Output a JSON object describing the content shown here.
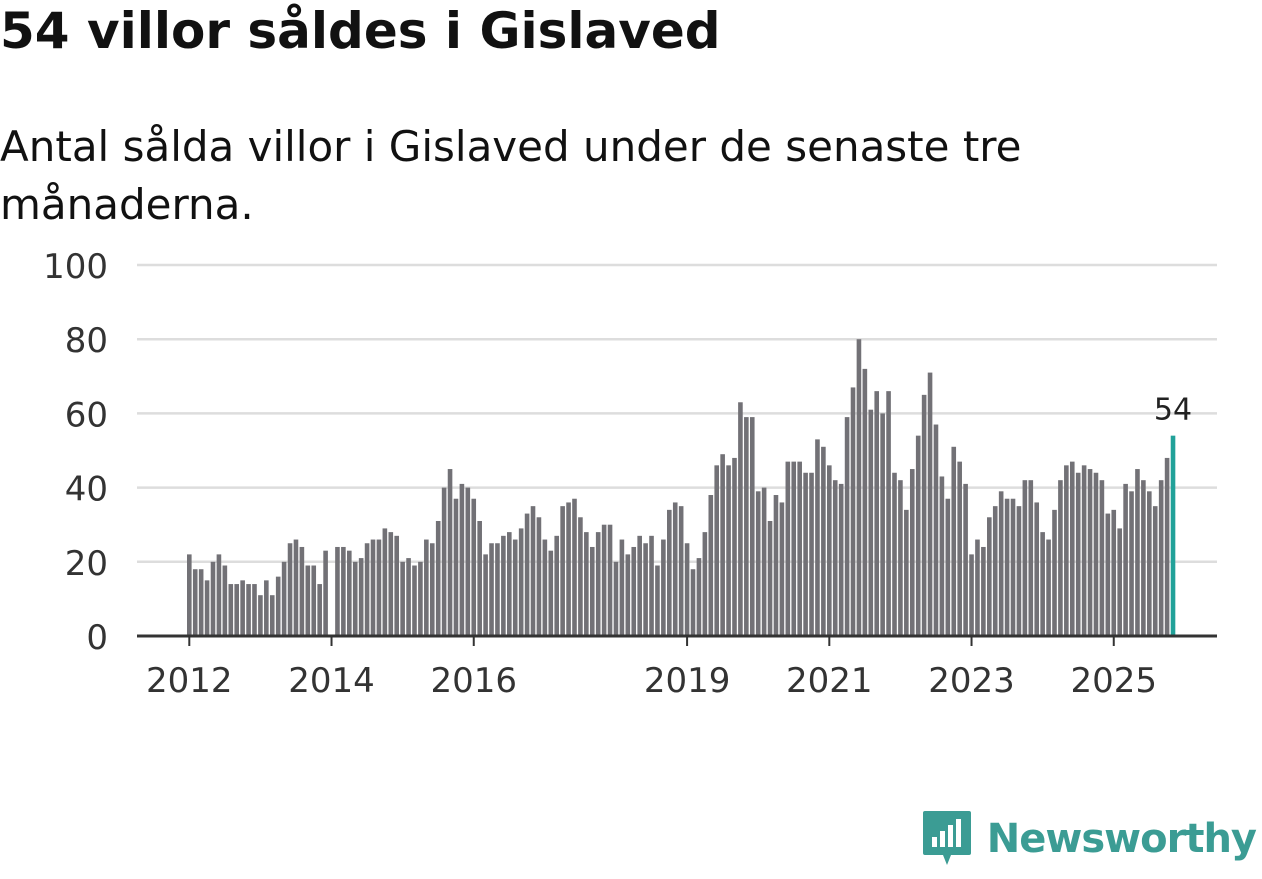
{
  "title": "54 villor såldes i Gislaved",
  "subtitle": "Antal sålda villor i Gislaved under de senaste tre månaderna.",
  "brand": {
    "name": "Newsworthy",
    "icon": "newsworthy-logo-icon",
    "color": "#3b9c94"
  },
  "colors": {
    "bar": "#727176",
    "highlight": "#21a199",
    "grid": "#dddddd",
    "axis": "#333333"
  },
  "chart_data": {
    "type": "bar",
    "title": "Antal sålda villor",
    "ylim": [
      0,
      100
    ],
    "yticks": [
      0,
      20,
      40,
      60,
      80,
      100
    ],
    "xticks": [
      {
        "label": "2012",
        "index": 0
      },
      {
        "label": "2014",
        "index": 24
      },
      {
        "label": "2016",
        "index": 48
      },
      {
        "label": "2019",
        "index": 84
      },
      {
        "label": "2021",
        "index": 108
      },
      {
        "label": "2023",
        "index": 132
      },
      {
        "label": "2025",
        "index": 156
      }
    ],
    "values": [
      22,
      18,
      18,
      15,
      20,
      22,
      19,
      14,
      14,
      15,
      14,
      14,
      11,
      15,
      11,
      16,
      20,
      25,
      26,
      24,
      19,
      19,
      14,
      23,
      0,
      24,
      24,
      23,
      20,
      21,
      25,
      26,
      26,
      29,
      28,
      27,
      20,
      21,
      19,
      20,
      26,
      25,
      31,
      40,
      45,
      37,
      41,
      40,
      37,
      31,
      22,
      25,
      25,
      27,
      28,
      26,
      29,
      33,
      35,
      32,
      26,
      23,
      27,
      35,
      36,
      37,
      32,
      28,
      24,
      28,
      30,
      30,
      20,
      26,
      22,
      24,
      27,
      25,
      27,
      19,
      26,
      34,
      36,
      35,
      25,
      18,
      21,
      28,
      38,
      46,
      49,
      46,
      48,
      63,
      59,
      59,
      39,
      40,
      31,
      38,
      36,
      47,
      47,
      47,
      44,
      44,
      53,
      51,
      46,
      42,
      41,
      59,
      67,
      80,
      72,
      61,
      66,
      60,
      66,
      44,
      42,
      34,
      45,
      54,
      65,
      71,
      57,
      43,
      37,
      51,
      47,
      41,
      22,
      26,
      24,
      32,
      35,
      39,
      37,
      37,
      35,
      42,
      42,
      36,
      28,
      26,
      34,
      42,
      46,
      47,
      44,
      46,
      45,
      44,
      42,
      33,
      34,
      29,
      41,
      39,
      45,
      42,
      39,
      35,
      42,
      48,
      54
    ],
    "highlight_label": "54"
  }
}
